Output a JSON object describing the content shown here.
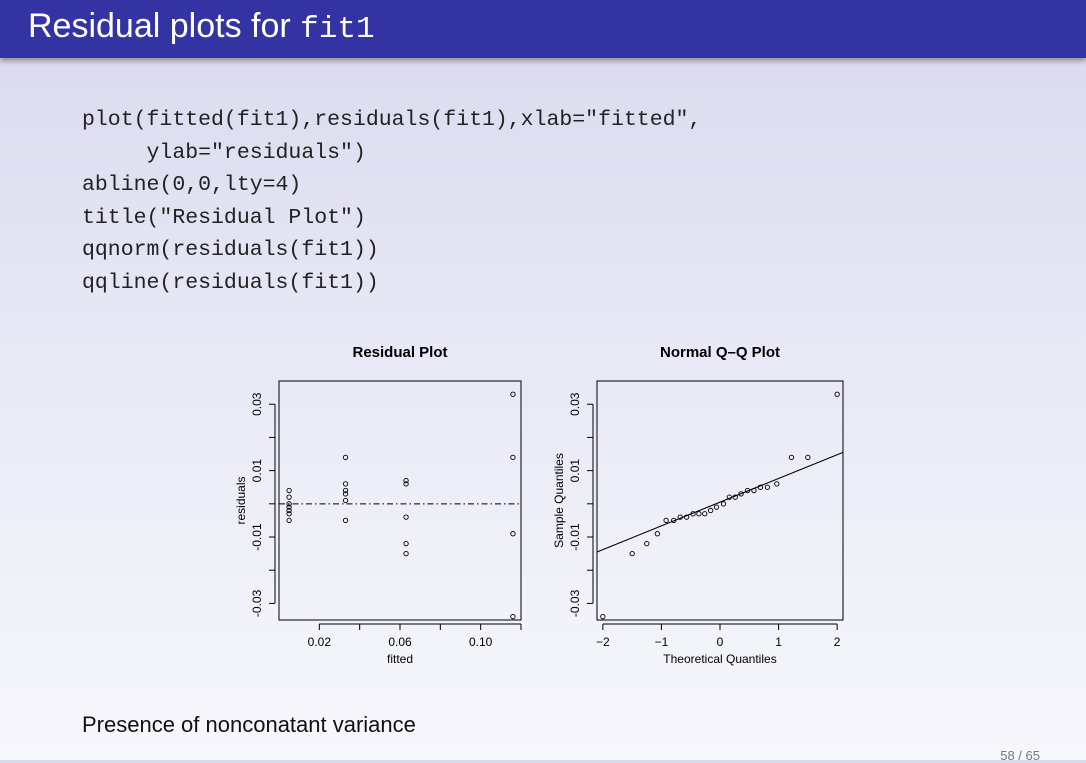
{
  "slide": {
    "title_text": "Residual plots for ",
    "title_code": "fit1",
    "code_lines": [
      "plot(fitted(fit1),residuals(fit1),xlab=\"fitted\",",
      "     ylab=\"residuals\")",
      "abline(0,0,lty=4)",
      "title(\"Residual Plot\")",
      "qqnorm(residuals(fit1))",
      "qqline(residuals(fit1))"
    ],
    "caption": "Presence of nonconatant variance",
    "page_number": "58 / 65"
  },
  "chart_data": [
    {
      "type": "scatter",
      "title": "Residual Plot",
      "xlabel": "fitted",
      "ylabel": "residuals",
      "xlim": [
        0.0,
        0.12
      ],
      "ylim": [
        -0.035,
        0.037
      ],
      "x_ticks": [
        0.02,
        0.04,
        0.06,
        0.08,
        0.1,
        0.12
      ],
      "x_tick_labels": [
        "0.02",
        "",
        "0.06",
        "",
        "0.10",
        ""
      ],
      "y_ticks": [
        -0.03,
        -0.02,
        -0.01,
        0.0,
        0.01,
        0.02,
        0.03
      ],
      "y_tick_labels": [
        "-0.03",
        "",
        "-0.01",
        "",
        "0.01",
        "",
        "0.03"
      ],
      "reference_line": {
        "y": 0,
        "style": "dot-dash"
      },
      "grid": false,
      "points": [
        {
          "x": 0.005,
          "y": 0.004
        },
        {
          "x": 0.005,
          "y": 0.002
        },
        {
          "x": 0.005,
          "y": 0.0
        },
        {
          "x": 0.005,
          "y": -0.001
        },
        {
          "x": 0.005,
          "y": -0.002
        },
        {
          "x": 0.005,
          "y": -0.003
        },
        {
          "x": 0.005,
          "y": -0.005
        },
        {
          "x": 0.033,
          "y": 0.014
        },
        {
          "x": 0.033,
          "y": 0.006
        },
        {
          "x": 0.033,
          "y": 0.004
        },
        {
          "x": 0.033,
          "y": 0.003
        },
        {
          "x": 0.033,
          "y": 0.001
        },
        {
          "x": 0.033,
          "y": -0.005
        },
        {
          "x": 0.063,
          "y": 0.007
        },
        {
          "x": 0.063,
          "y": 0.006
        },
        {
          "x": 0.063,
          "y": -0.004
        },
        {
          "x": 0.063,
          "y": -0.012
        },
        {
          "x": 0.063,
          "y": -0.015
        },
        {
          "x": 0.116,
          "y": 0.033
        },
        {
          "x": 0.116,
          "y": 0.014
        },
        {
          "x": 0.116,
          "y": -0.009
        },
        {
          "x": 0.116,
          "y": -0.034
        }
      ]
    },
    {
      "type": "scatter",
      "title": "Normal Q–Q Plot",
      "xlabel": "Theoretical Quantiles",
      "ylabel": "Sample Quantiles",
      "xlim": [
        -2.1,
        2.1
      ],
      "ylim": [
        -0.035,
        0.037
      ],
      "x_ticks": [
        -2,
        -1,
        0,
        1,
        2
      ],
      "x_tick_labels": [
        "−2",
        "−1",
        "0",
        "1",
        "2"
      ],
      "y_ticks": [
        -0.03,
        -0.02,
        -0.01,
        0.0,
        0.01,
        0.02,
        0.03
      ],
      "y_tick_labels": [
        "-0.03",
        "",
        "-0.01",
        "",
        "0.01",
        "",
        "0.03"
      ],
      "reference_line": {
        "x1": -2.1,
        "y1": -0.0145,
        "x2": 2.1,
        "y2": 0.0155,
        "style": "solid"
      },
      "grid": false,
      "points": [
        {
          "x": -2.0,
          "y": -0.034
        },
        {
          "x": -1.5,
          "y": -0.015
        },
        {
          "x": -1.25,
          "y": -0.012
        },
        {
          "x": -1.07,
          "y": -0.009
        },
        {
          "x": -0.92,
          "y": -0.005
        },
        {
          "x": -0.79,
          "y": -0.005
        },
        {
          "x": -0.68,
          "y": -0.004
        },
        {
          "x": -0.57,
          "y": -0.004
        },
        {
          "x": -0.46,
          "y": -0.003
        },
        {
          "x": -0.36,
          "y": -0.003
        },
        {
          "x": -0.26,
          "y": -0.003
        },
        {
          "x": -0.16,
          "y": -0.002
        },
        {
          "x": -0.06,
          "y": -0.001
        },
        {
          "x": 0.06,
          "y": 0.0
        },
        {
          "x": 0.16,
          "y": 0.002
        },
        {
          "x": 0.26,
          "y": 0.002
        },
        {
          "x": 0.36,
          "y": 0.003
        },
        {
          "x": 0.47,
          "y": 0.004
        },
        {
          "x": 0.58,
          "y": 0.004
        },
        {
          "x": 0.69,
          "y": 0.005
        },
        {
          "x": 0.81,
          "y": 0.005
        },
        {
          "x": 0.97,
          "y": 0.006
        },
        {
          "x": 1.22,
          "y": 0.014
        },
        {
          "x": 1.5,
          "y": 0.014
        },
        {
          "x": 2.0,
          "y": 0.033
        }
      ]
    }
  ]
}
